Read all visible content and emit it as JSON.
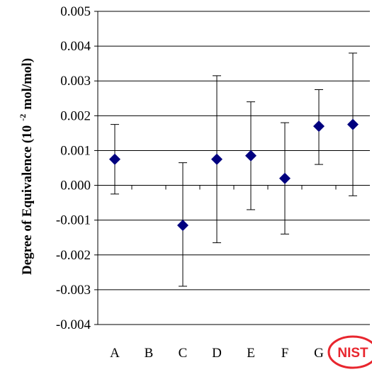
{
  "chart_data": {
    "type": "scatter",
    "ylabel_main": "Degree of Equivalence (10",
    "ylabel_exp": "-2",
    "ylabel_unit": "mol/mol)",
    "ylim": [
      -0.004,
      0.005
    ],
    "yticks": [
      "0.005",
      "0.004",
      "0.003",
      "0.002",
      "0.001",
      "0.000",
      "-0.001",
      "-0.002",
      "-0.003",
      "-0.004"
    ],
    "grid": "horizontal",
    "categories": [
      "A",
      "B",
      "C",
      "D",
      "E",
      "F",
      "G",
      "NIST"
    ],
    "points": [
      {
        "category": "A",
        "y": 0.00075,
        "err_low": -0.00025,
        "err_high": 0.00175
      },
      {
        "category": "C",
        "y": -0.00115,
        "err_low": -0.0029,
        "err_high": 0.00065
      },
      {
        "category": "D",
        "y": 0.00075,
        "err_low": -0.00165,
        "err_high": 0.00315
      },
      {
        "category": "E",
        "y": 0.00085,
        "err_low": -0.0007,
        "err_high": 0.0024
      },
      {
        "category": "F",
        "y": 0.0002,
        "err_low": -0.0014,
        "err_high": 0.0018
      },
      {
        "category": "G",
        "y": 0.0017,
        "err_low": 0.0006,
        "err_high": 0.00275
      },
      {
        "category": "NIST",
        "y": 0.00175,
        "err_low": -0.0003,
        "err_high": 0.0038
      }
    ],
    "highlight": {
      "category": "NIST",
      "color": "#e8262e"
    },
    "marker_color": "#00007f"
  }
}
